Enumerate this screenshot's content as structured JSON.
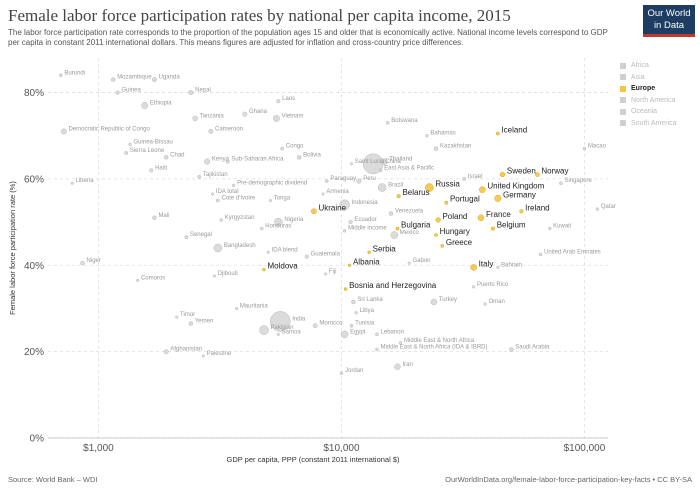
{
  "header": {
    "title": "Female labor force participation rates by national per capita income, 2015",
    "subtitle": "The labor force participation rate corresponds to the proportion of the population ages 15 and older that is economically active. National income levels correspond to GDP per capita in constant 2011 international dollars. This means figures are adjusted for inflation and cross-country price differences.",
    "logo_line1": "Our World",
    "logo_line2": "in Data"
  },
  "footer": {
    "source": "Source: World Bank – WDI",
    "url": "OurWorldInData.org/female-labor-force-participation-key-facts • CC BY-SA"
  },
  "legend": [
    {
      "label": "Africa",
      "color": "#cfcfcf",
      "active": false
    },
    {
      "label": "Asia",
      "color": "#cfcfcf",
      "active": false
    },
    {
      "label": "Europe",
      "color": "#f5c542",
      "active": true
    },
    {
      "label": "North America",
      "color": "#cfcfcf",
      "active": false
    },
    {
      "label": "Oceania",
      "color": "#cfcfcf",
      "active": false
    },
    {
      "label": "South America",
      "color": "#cfcfcf",
      "active": false
    }
  ],
  "colors": {
    "highlight": "#f5c542",
    "highlight_stroke": "#d4a514",
    "muted": "#cccccc",
    "grid": "#dddddd"
  },
  "chart_data": {
    "type": "scatter",
    "xlabel": "GDP per capita, PPP (constant 2011 international $)",
    "ylabel": "Female labor force participation rate (%)",
    "x_scale": "log",
    "xlim": [
      620,
      125000
    ],
    "ylim": [
      0,
      88
    ],
    "x_ticks": [
      {
        "value": 1000,
        "label": "$1,000"
      },
      {
        "value": 10000,
        "label": "$10,000"
      },
      {
        "value": 100000,
        "label": "$100,000"
      }
    ],
    "y_ticks": [
      {
        "value": 0,
        "label": "0%"
      },
      {
        "value": 20,
        "label": "20%"
      },
      {
        "value": 40,
        "label": "40%"
      },
      {
        "value": 60,
        "label": "60%"
      },
      {
        "value": 80,
        "label": "80%"
      }
    ],
    "grid": true,
    "legend_position": "right",
    "points": [
      {
        "label": "Burundi",
        "x": 700,
        "y": 84,
        "r": 1.6,
        "eu": false
      },
      {
        "label": "Mozambique",
        "x": 1150,
        "y": 83,
        "r": 2,
        "eu": false
      },
      {
        "label": "Uganda",
        "x": 1700,
        "y": 83,
        "r": 2.2,
        "eu": false
      },
      {
        "label": "Guinea",
        "x": 1200,
        "y": 80,
        "r": 1.8,
        "eu": false
      },
      {
        "label": "Nepal",
        "x": 2400,
        "y": 80,
        "r": 2.3,
        "eu": false
      },
      {
        "label": "Ethiopia",
        "x": 1550,
        "y": 77,
        "r": 3.2,
        "eu": false
      },
      {
        "label": "Laos",
        "x": 5500,
        "y": 78,
        "r": 1.8,
        "eu": false
      },
      {
        "label": "Ghana",
        "x": 4000,
        "y": 75,
        "r": 2.2,
        "eu": false
      },
      {
        "label": "Vietnam",
        "x": 5400,
        "y": 74,
        "r": 3.2,
        "eu": false
      },
      {
        "label": "Tanzania",
        "x": 2500,
        "y": 74,
        "r": 2.5,
        "eu": false
      },
      {
        "label": "Botswana",
        "x": 15500,
        "y": 73,
        "r": 1.6,
        "eu": false
      },
      {
        "label": "Cameroon",
        "x": 2900,
        "y": 71,
        "r": 2.2,
        "eu": false
      },
      {
        "label": "Democratic Republic of Congo",
        "x": 720,
        "y": 71,
        "r": 2.7,
        "eu": false
      },
      {
        "label": "Iceland",
        "x": 44000,
        "y": 70.5,
        "r": 1.6,
        "eu": true
      },
      {
        "label": "Bahamas",
        "x": 22500,
        "y": 70,
        "r": 1.4,
        "eu": false
      },
      {
        "label": "Kazakhstan",
        "x": 24500,
        "y": 67,
        "r": 2,
        "eu": false
      },
      {
        "label": "Macao",
        "x": 100000,
        "y": 67,
        "r": 1.5,
        "eu": false
      },
      {
        "label": "Guinea-Bissau",
        "x": 1350,
        "y": 68,
        "r": 1.4,
        "eu": false
      },
      {
        "label": "Congo",
        "x": 5700,
        "y": 67,
        "r": 1.7,
        "eu": false
      },
      {
        "label": "Sierra Leone",
        "x": 1300,
        "y": 66,
        "r": 1.7,
        "eu": false
      },
      {
        "label": "Chad",
        "x": 1900,
        "y": 65,
        "r": 2,
        "eu": false
      },
      {
        "label": "Bolivia",
        "x": 6700,
        "y": 65,
        "r": 2,
        "eu": false
      },
      {
        "label": "China",
        "x": 13500,
        "y": 63.5,
        "r": 10,
        "eu": false
      },
      {
        "label": "Thailand",
        "x": 15000,
        "y": 64,
        "r": 3,
        "eu": false
      },
      {
        "label": "Saint Lucia",
        "x": 11000,
        "y": 63.5,
        "r": 1.3,
        "eu": false
      },
      {
        "label": "Kenya",
        "x": 2800,
        "y": 64,
        "r": 2.8,
        "eu": false
      },
      {
        "label": "Sub-Saharan Africa",
        "x": 3400,
        "y": 64,
        "r": 1.8,
        "eu": false
      },
      {
        "label": "Haiti",
        "x": 1650,
        "y": 62,
        "r": 1.8,
        "eu": false
      },
      {
        "label": "East Asia & Pacific",
        "x": 14500,
        "y": 62,
        "r": 1.5,
        "eu": false
      },
      {
        "label": "Israel",
        "x": 32000,
        "y": 60,
        "r": 1.6,
        "eu": false
      },
      {
        "label": "Sweden",
        "x": 46000,
        "y": 61,
        "r": 2.4,
        "eu": true
      },
      {
        "label": "Norway",
        "x": 64000,
        "y": 61,
        "r": 2,
        "eu": true
      },
      {
        "label": "Tajikistan",
        "x": 2600,
        "y": 60.5,
        "r": 1.6,
        "eu": false
      },
      {
        "label": "Liberia",
        "x": 780,
        "y": 59,
        "r": 1.3,
        "eu": false
      },
      {
        "label": "Peru",
        "x": 11800,
        "y": 59.5,
        "r": 2.3,
        "eu": false
      },
      {
        "label": "Paraguay",
        "x": 8700,
        "y": 59.5,
        "r": 1.6,
        "eu": false
      },
      {
        "label": "Singapore",
        "x": 80000,
        "y": 59,
        "r": 1.6,
        "eu": false
      },
      {
        "label": "Pre-demographic dividend",
        "x": 3600,
        "y": 58.5,
        "r": 1.5,
        "eu": false
      },
      {
        "label": "Brazil",
        "x": 14700,
        "y": 58,
        "r": 4,
        "eu": false
      },
      {
        "label": "Russia",
        "x": 23000,
        "y": 58,
        "r": 4,
        "eu": true
      },
      {
        "label": "United Kingdom",
        "x": 38000,
        "y": 57.5,
        "r": 3,
        "eu": true
      },
      {
        "label": "Germany",
        "x": 44000,
        "y": 55.5,
        "r": 3.2,
        "eu": true
      },
      {
        "label": "Armenia",
        "x": 8400,
        "y": 56.5,
        "r": 1.3,
        "eu": false
      },
      {
        "label": "IDA total",
        "x": 2950,
        "y": 56.5,
        "r": 1.3,
        "eu": false
      },
      {
        "label": "Belarus",
        "x": 17200,
        "y": 56,
        "r": 1.8,
        "eu": true
      },
      {
        "label": "Portugal",
        "x": 27000,
        "y": 54.5,
        "r": 1.7,
        "eu": true
      },
      {
        "label": "Cote d'Ivoire",
        "x": 3100,
        "y": 55,
        "r": 1.7,
        "eu": false
      },
      {
        "label": "Tonga",
        "x": 5100,
        "y": 55,
        "r": 1.3,
        "eu": false
      },
      {
        "label": "Ukraine",
        "x": 7700,
        "y": 52.5,
        "r": 2.6,
        "eu": true
      },
      {
        "label": "Indonesia",
        "x": 10300,
        "y": 54,
        "r": 5,
        "eu": false
      },
      {
        "label": "Venezuela",
        "x": 16000,
        "y": 52,
        "r": 2,
        "eu": false
      },
      {
        "label": "Ireland",
        "x": 55000,
        "y": 52.5,
        "r": 1.8,
        "eu": true
      },
      {
        "label": "Qatar",
        "x": 113000,
        "y": 53,
        "r": 1.5,
        "eu": false
      },
      {
        "label": "France",
        "x": 37500,
        "y": 51,
        "r": 3,
        "eu": true
      },
      {
        "label": "Poland",
        "x": 25000,
        "y": 50.5,
        "r": 2.3,
        "eu": true
      },
      {
        "label": "Belgium",
        "x": 42000,
        "y": 48.5,
        "r": 1.8,
        "eu": true
      },
      {
        "label": "Kuwait",
        "x": 72000,
        "y": 48.5,
        "r": 1.4,
        "eu": false
      },
      {
        "label": "Mali",
        "x": 1700,
        "y": 51,
        "r": 2,
        "eu": false
      },
      {
        "label": "Kyrgyzstan",
        "x": 3200,
        "y": 50.5,
        "r": 1.6,
        "eu": false
      },
      {
        "label": "Nigeria",
        "x": 5500,
        "y": 50,
        "r": 4,
        "eu": false
      },
      {
        "label": "Ecuador",
        "x": 10900,
        "y": 50,
        "r": 1.8,
        "eu": false
      },
      {
        "label": "Bulgaria",
        "x": 17000,
        "y": 48.5,
        "r": 1.6,
        "eu": true
      },
      {
        "label": "Honduras",
        "x": 4700,
        "y": 48.5,
        "r": 1.5,
        "eu": false
      },
      {
        "label": "Middle income",
        "x": 10300,
        "y": 48,
        "r": 1.5,
        "eu": false
      },
      {
        "label": "Hungary",
        "x": 24500,
        "y": 47,
        "r": 1.6,
        "eu": true
      },
      {
        "label": "Mexico",
        "x": 16500,
        "y": 47,
        "r": 3.5,
        "eu": false
      },
      {
        "label": "Senegal",
        "x": 2300,
        "y": 46.5,
        "r": 1.6,
        "eu": false
      },
      {
        "label": "Greece",
        "x": 26000,
        "y": 44.5,
        "r": 1.6,
        "eu": true
      },
      {
        "label": "Bangladesh",
        "x": 3100,
        "y": 44,
        "r": 4,
        "eu": false
      },
      {
        "label": "Serbia",
        "x": 13000,
        "y": 43,
        "r": 1.5,
        "eu": true
      },
      {
        "label": "IDA blend",
        "x": 5000,
        "y": 43,
        "r": 1.3,
        "eu": false
      },
      {
        "label": "United Arab Emirates",
        "x": 66000,
        "y": 42.5,
        "r": 1.5,
        "eu": false
      },
      {
        "label": "Guatemala",
        "x": 7200,
        "y": 42,
        "r": 1.8,
        "eu": false
      },
      {
        "label": "Albania",
        "x": 10800,
        "y": 40,
        "r": 1.4,
        "eu": true
      },
      {
        "label": "Gabon",
        "x": 19000,
        "y": 40.5,
        "r": 1.3,
        "eu": false
      },
      {
        "label": "Italy",
        "x": 35000,
        "y": 39.5,
        "r": 3,
        "eu": true
      },
      {
        "label": "Bahrain",
        "x": 44000,
        "y": 39.5,
        "r": 1.3,
        "eu": false
      },
      {
        "label": "Niger",
        "x": 860,
        "y": 40.5,
        "r": 2,
        "eu": false
      },
      {
        "label": "Moldova",
        "x": 4800,
        "y": 39,
        "r": 1.5,
        "eu": true
      },
      {
        "label": "Comoros",
        "x": 1450,
        "y": 36.5,
        "r": 1.3,
        "eu": false
      },
      {
        "label": "Djibouti",
        "x": 3000,
        "y": 37.5,
        "r": 1.3,
        "eu": false
      },
      {
        "label": "Fiji",
        "x": 8600,
        "y": 38,
        "r": 1.3,
        "eu": false
      },
      {
        "label": "Bosnia and Herzegovina",
        "x": 10400,
        "y": 34.5,
        "r": 1.5,
        "eu": true
      },
      {
        "label": "Puerto Rico",
        "x": 35000,
        "y": 35,
        "r": 1.4,
        "eu": false
      },
      {
        "label": "Turkey",
        "x": 24000,
        "y": 31.5,
        "r": 3,
        "eu": false
      },
      {
        "label": "Oman",
        "x": 39000,
        "y": 31,
        "r": 1.4,
        "eu": false
      },
      {
        "label": "India",
        "x": 5600,
        "y": 27,
        "r": 10,
        "eu": false
      },
      {
        "label": "Sri Lanka",
        "x": 11200,
        "y": 31.5,
        "r": 2,
        "eu": false
      },
      {
        "label": "Mauritania",
        "x": 3700,
        "y": 30,
        "r": 1.3,
        "eu": false
      },
      {
        "label": "Libya",
        "x": 11500,
        "y": 29,
        "r": 1.4,
        "eu": false
      },
      {
        "label": "Timor",
        "x": 2100,
        "y": 28,
        "r": 1.3,
        "eu": false
      },
      {
        "label": "Yemen",
        "x": 2400,
        "y": 26.5,
        "r": 2,
        "eu": false
      },
      {
        "label": "Pakistan",
        "x": 4800,
        "y": 25,
        "r": 4.5,
        "eu": false
      },
      {
        "label": "Morocco",
        "x": 7800,
        "y": 26,
        "r": 2.2,
        "eu": false
      },
      {
        "label": "Tunisia",
        "x": 11000,
        "y": 26,
        "r": 1.6,
        "eu": false
      },
      {
        "label": "Samoa",
        "x": 5500,
        "y": 24,
        "r": 1.3,
        "eu": false
      },
      {
        "label": "Egypt",
        "x": 10300,
        "y": 24,
        "r": 3.5,
        "eu": false
      },
      {
        "label": "Lebanon",
        "x": 14000,
        "y": 24,
        "r": 1.6,
        "eu": false
      },
      {
        "label": "Middle East & North Africa",
        "x": 17500,
        "y": 22,
        "r": 1.5,
        "eu": false
      },
      {
        "label": "Middle East & North Africa (IDA & IBRD)",
        "x": 14000,
        "y": 20.5,
        "r": 1.5,
        "eu": false
      },
      {
        "label": "Saudi Arabia",
        "x": 50000,
        "y": 20.5,
        "r": 2,
        "eu": false
      },
      {
        "label": "Afghanistan",
        "x": 1900,
        "y": 20,
        "r": 2.2,
        "eu": false
      },
      {
        "label": "Palestine",
        "x": 2700,
        "y": 19,
        "r": 1.3,
        "eu": false
      },
      {
        "label": "Iran",
        "x": 17000,
        "y": 16.5,
        "r": 3,
        "eu": false
      },
      {
        "label": "Jordan",
        "x": 10000,
        "y": 15,
        "r": 1.6,
        "eu": false
      }
    ]
  }
}
